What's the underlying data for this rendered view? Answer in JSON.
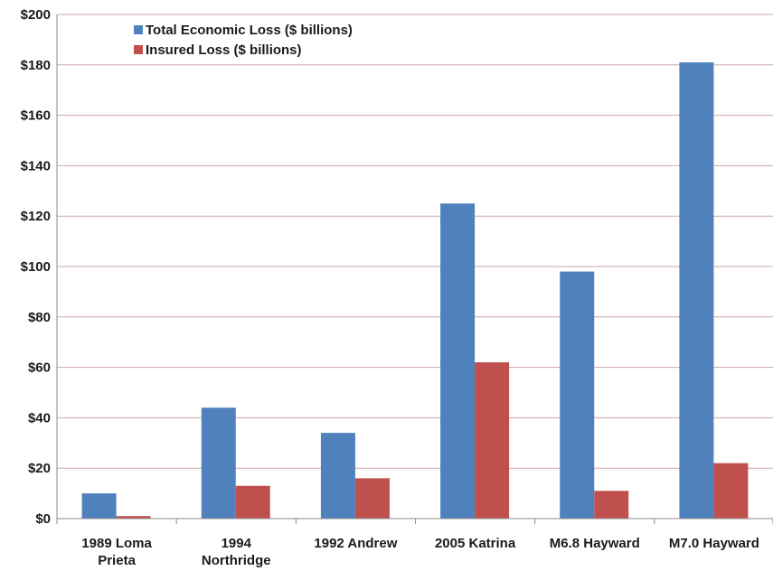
{
  "chart_data": {
    "type": "bar",
    "categories": [
      [
        "1989 Loma",
        "Prieta"
      ],
      [
        "1994",
        "Northridge"
      ],
      [
        "1992 Andrew"
      ],
      [
        "2005 Katrina"
      ],
      [
        "M6.8 Hayward"
      ],
      [
        "M7.0 Hayward"
      ]
    ],
    "series": [
      {
        "name": "Total Economic Loss ($ billions)",
        "color": "#4f81bd",
        "values": [
          10,
          44,
          34,
          125,
          98,
          181
        ]
      },
      {
        "name": "Insured Loss ($ billions)",
        "color": "#c0504d",
        "values": [
          1,
          13,
          16,
          62,
          11,
          22
        ]
      }
    ],
    "ylim": [
      0,
      200
    ],
    "yticks": [
      0,
      20,
      40,
      60,
      80,
      100,
      120,
      140,
      160,
      180,
      200
    ],
    "ytick_labels": [
      "$0",
      "$20",
      "$40",
      "$60",
      "$80",
      "$100",
      "$120",
      "$140",
      "$160",
      "$180",
      "$200"
    ],
    "title": "",
    "xlabel": "",
    "ylabel": "",
    "grid": true,
    "legend": "top-left"
  }
}
